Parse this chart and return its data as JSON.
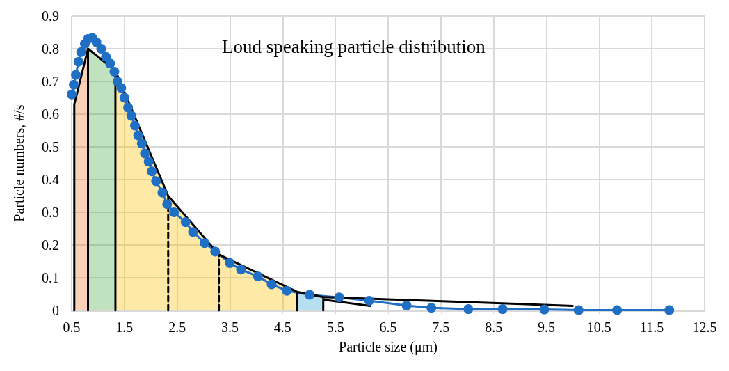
{
  "chart_data": {
    "type": "line",
    "title": "Loud speaking particle distribution",
    "xlabel": "Particle size (μm)",
    "ylabel": "Particle numbers, #/s",
    "xlim": [
      0.5,
      12.5
    ],
    "xticks": [
      0.5,
      1.5,
      2.5,
      3.5,
      4.5,
      5.5,
      6.5,
      7.5,
      8.5,
      9.5,
      10.5,
      11.5,
      12.5
    ],
    "ylim": [
      0,
      0.9
    ],
    "yticks": [
      0,
      0.1,
      0.2,
      0.3,
      0.4,
      0.5,
      0.6,
      0.7,
      0.8,
      0.9
    ],
    "grid": true,
    "series": [
      {
        "type": "area",
        "color": "#ed7d31",
        "x": [
          0.55,
          0.81
        ],
        "values": [
          0.63,
          0.8
        ],
        "marker": "none"
      },
      {
        "type": "area",
        "color": "#4aac45",
        "x": [
          0.81,
          1.33
        ],
        "values": [
          0.8,
          0.733
        ],
        "marker": "none"
      },
      {
        "type": "area",
        "color": "#ffc000",
        "x": [
          1.33,
          2.33,
          3.29,
          4.77
        ],
        "values": [
          0.733,
          0.35,
          0.171,
          0.057
        ],
        "marker": "none"
      },
      {
        "type": "area",
        "color": "#2fa4d9",
        "x": [
          4.77,
          5.27
        ],
        "values": [
          0.057,
          0.041
        ],
        "marker": "none"
      },
      {
        "color": "#1f6fc5",
        "marker": "circle",
        "line_style": "solid",
        "x": [
          0.5,
          0.54,
          0.58,
          0.63,
          0.68,
          0.75,
          0.81,
          0.89,
          0.97,
          1.06,
          1.15,
          1.23,
          1.31,
          1.37,
          1.44,
          1.5,
          1.57,
          1.63,
          1.7,
          1.76,
          1.83,
          1.89,
          1.96,
          2.02,
          2.1,
          2.22,
          2.31,
          2.44,
          2.66,
          2.8,
          3.02,
          3.22,
          3.5,
          3.71,
          4.03,
          4.29,
          4.58,
          5.01,
          5.57,
          6.14,
          6.85,
          7.32,
          8.02,
          8.67,
          9.46,
          10.11,
          10.84,
          11.83
        ],
        "values": [
          0.66,
          0.69,
          0.72,
          0.76,
          0.79,
          0.815,
          0.83,
          0.833,
          0.82,
          0.8,
          0.775,
          0.755,
          0.73,
          0.7,
          0.68,
          0.65,
          0.62,
          0.595,
          0.565,
          0.535,
          0.51,
          0.48,
          0.455,
          0.425,
          0.395,
          0.36,
          0.325,
          0.3,
          0.27,
          0.24,
          0.206,
          0.18,
          0.145,
          0.125,
          0.104,
          0.08,
          0.06,
          0.048,
          0.04,
          0.03,
          0.015,
          0.008,
          0.004,
          0.004,
          0.003,
          0.001,
          0.001,
          0.001
        ]
      },
      {
        "color": "#000000",
        "marker": "none",
        "line_style": "solid",
        "x": [
          0.55,
          0.55,
          0.81,
          0.81,
          0.81,
          1.33,
          1.33,
          1.33,
          2.33,
          3.29,
          4.77,
          4.77,
          4.77,
          5.27,
          5.27,
          5.27,
          6.16,
          5.27,
          5.27,
          10.0
        ],
        "values": [
          0,
          0.63,
          0.8,
          0,
          0.8,
          0.733,
          0,
          0.733,
          0.35,
          0.171,
          0.057,
          0,
          0.057,
          0.041,
          0,
          0.033,
          0.014,
          0.033,
          0.041,
          0.014
        ]
      },
      {
        "color": "#000000",
        "marker": "none",
        "line_style": "dashed",
        "x": [
          2.33,
          2.33
        ],
        "values": [
          0,
          0.35
        ]
      },
      {
        "color": "#000000",
        "marker": "none",
        "line_style": "dashed",
        "x": [
          3.29,
          3.29
        ],
        "values": [
          0,
          0.171
        ]
      }
    ]
  }
}
